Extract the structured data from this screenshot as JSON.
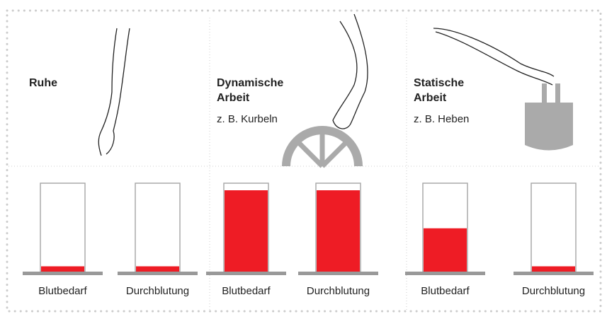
{
  "chart_data": [
    {
      "type": "bar",
      "title": "Ruhe",
      "categories": [
        "Blutbedarf",
        "Durchblutung"
      ],
      "values": [
        6,
        6
      ],
      "color": "#ee1c25",
      "ylim": [
        0,
        100
      ]
    },
    {
      "type": "bar",
      "title": "Dynamische Arbeit",
      "subtitle": "z. B. Kurbeln",
      "categories": [
        "Blutbedarf",
        "Durchblutung"
      ],
      "values": [
        92,
        92
      ],
      "color": "#ee1c25",
      "ylim": [
        0,
        100
      ]
    },
    {
      "type": "bar",
      "title": "Statische Arbeit",
      "subtitle": "z. B. Heben",
      "categories": [
        "Blutbedarf",
        "Durchblutung"
      ],
      "values": [
        49,
        6
      ],
      "color": "#ee1c25",
      "ylim": [
        0,
        100
      ]
    }
  ]
}
